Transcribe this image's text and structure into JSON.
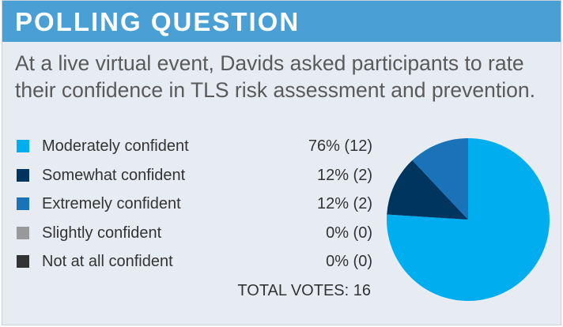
{
  "header": {
    "title": "POLLING QUESTION"
  },
  "question": "At a live virtual event, Davids asked participants to rate their confidence in TLS risk assessment and prevention.",
  "chart_data": {
    "type": "pie",
    "categories": [
      "Moderately confident",
      "Somewhat confident",
      "Extremely confident",
      "Slightly confident",
      "Not at all confident"
    ],
    "values": [
      76,
      12,
      12,
      0,
      0
    ],
    "counts": [
      12,
      2,
      2,
      0,
      0
    ],
    "value_labels": [
      "76% (12)",
      "12% (2)",
      "12% (2)",
      "0% (0)",
      "0% (0)"
    ],
    "colors": [
      "#00aeef",
      "#00355f",
      "#1a72b8",
      "#999999",
      "#333333"
    ],
    "total_label": "TOTAL VOTES:",
    "total": 16,
    "legend_position": "left"
  }
}
